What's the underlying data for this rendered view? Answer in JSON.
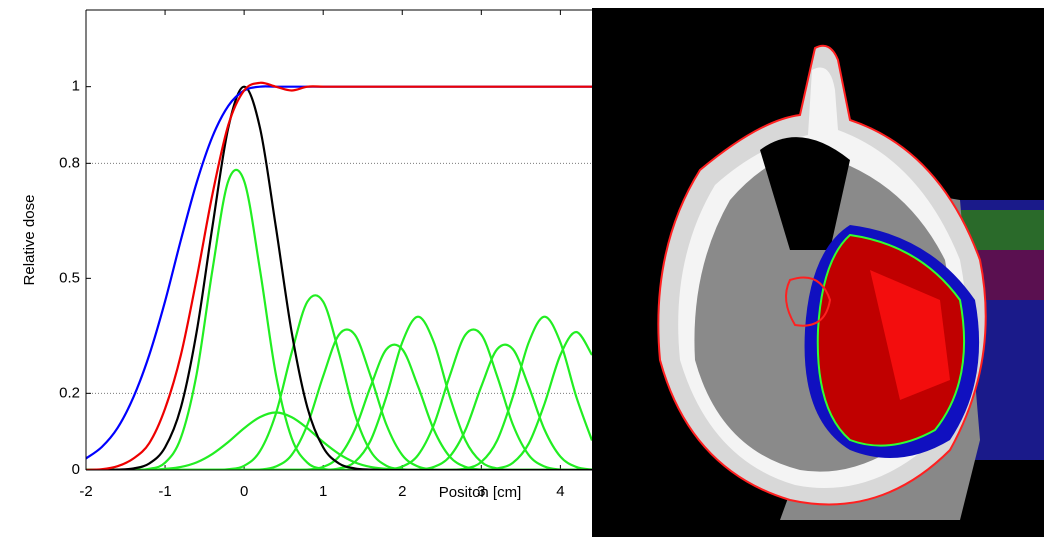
{
  "chart_data": {
    "type": "line",
    "x_label": "Positon [cm]",
    "y_label": "Relative dose",
    "x": [
      -2,
      -1.8,
      -1.6,
      -1.4,
      -1.2,
      -1,
      -0.8,
      -0.6,
      -0.4,
      -0.2,
      0,
      0.2,
      0.4,
      0.6,
      0.8,
      1,
      1.2,
      1.4,
      1.6,
      1.8,
      2,
      2.2,
      2.4,
      2.6,
      2.8,
      3,
      3.2,
      3.4,
      3.6,
      3.8,
      4,
      4.2,
      4.4
    ],
    "xlim": [
      -2,
      4.4
    ],
    "xticks": [
      -2,
      -1,
      0,
      1,
      2,
      3,
      4
    ],
    "ylim": [
      0,
      1.2
    ],
    "yticks": [
      0,
      0.2,
      0.5,
      0.8,
      1
    ],
    "grid_lines": [
      0.2,
      0.8
    ],
    "series": [
      {
        "color": "#22ee22",
        "values": [
          0,
          0,
          0,
          0,
          0.003,
          0.019,
          0.084,
          0.251,
          0.523,
          0.754,
          0.754,
          0.523,
          0.251,
          0.084,
          0.019,
          0.003,
          0,
          0,
          0,
          0,
          0,
          0,
          0,
          0,
          0,
          0,
          0,
          0,
          0,
          0,
          0,
          0,
          0
        ]
      },
      {
        "color": "#22ee22",
        "values": [
          0,
          0,
          0,
          0,
          0,
          0.003,
          0.008,
          0.02,
          0.042,
          0.073,
          0.109,
          0.138,
          0.15,
          0.138,
          0.109,
          0.073,
          0.042,
          0.02,
          0.008,
          0.003,
          0,
          0,
          0,
          0,
          0,
          0,
          0,
          0,
          0,
          0,
          0,
          0,
          0
        ]
      },
      {
        "color": "#22ee22",
        "values": [
          0,
          0,
          0,
          0,
          0,
          0,
          0,
          0,
          0,
          0.002,
          0.011,
          0.049,
          0.146,
          0.305,
          0.439,
          0.439,
          0.305,
          0.146,
          0.049,
          0.011,
          0.002,
          0,
          0,
          0,
          0,
          0,
          0,
          0,
          0,
          0,
          0,
          0,
          0
        ]
      },
      {
        "color": "#22ee22",
        "values": [
          0,
          0,
          0,
          0,
          0,
          0,
          0,
          0,
          0,
          0,
          0,
          0.001,
          0.009,
          0.039,
          0.118,
          0.245,
          0.353,
          0.353,
          0.245,
          0.118,
          0.039,
          0.009,
          0.001,
          0,
          0,
          0,
          0,
          0,
          0,
          0,
          0,
          0,
          0
        ]
      },
      {
        "color": "#22ee22",
        "values": [
          0,
          0,
          0,
          0,
          0,
          0,
          0,
          0,
          0,
          0,
          0,
          0,
          0,
          0,
          0.001,
          0.008,
          0.035,
          0.105,
          0.218,
          0.315,
          0.315,
          0.218,
          0.105,
          0.035,
          0.008,
          0.001,
          0,
          0,
          0,
          0,
          0,
          0,
          0
        ]
      },
      {
        "color": "#22ee22",
        "values": [
          0,
          0,
          0,
          0,
          0,
          0,
          0,
          0,
          0,
          0,
          0,
          0,
          0,
          0,
          0,
          0,
          0.004,
          0.021,
          0.077,
          0.192,
          0.333,
          0.4,
          0.333,
          0.192,
          0.077,
          0.021,
          0.004,
          0,
          0,
          0,
          0,
          0,
          0
        ]
      },
      {
        "color": "#22ee22",
        "values": [
          0,
          0,
          0,
          0,
          0,
          0,
          0,
          0,
          0,
          0,
          0,
          0,
          0,
          0,
          0,
          0,
          0,
          0,
          0,
          0.001,
          0.009,
          0.039,
          0.118,
          0.245,
          0.353,
          0.353,
          0.245,
          0.118,
          0.039,
          0.009,
          0.001,
          0,
          0
        ]
      },
      {
        "color": "#22ee22",
        "values": [
          0,
          0,
          0,
          0,
          0,
          0,
          0,
          0,
          0,
          0,
          0,
          0,
          0,
          0,
          0,
          0,
          0,
          0,
          0,
          0,
          0,
          0.001,
          0.008,
          0.035,
          0.105,
          0.218,
          0.315,
          0.315,
          0.218,
          0.105,
          0.035,
          0.008,
          0.001
        ]
      },
      {
        "color": "#22ee22",
        "values": [
          0,
          0,
          0,
          0,
          0,
          0,
          0,
          0,
          0,
          0,
          0,
          0,
          0,
          0,
          0,
          0,
          0,
          0,
          0,
          0,
          0,
          0,
          0,
          0,
          0.004,
          0.021,
          0.077,
          0.192,
          0.333,
          0.4,
          0.333,
          0.192,
          0.077
        ]
      },
      {
        "color": "#22ee22",
        "values": [
          0,
          0,
          0,
          0,
          0,
          0,
          0,
          0,
          0,
          0,
          0,
          0,
          0,
          0,
          0,
          0,
          0,
          0,
          0,
          0,
          0,
          0,
          0,
          0,
          0,
          0,
          0.004,
          0.019,
          0.069,
          0.173,
          0.3,
          0.36,
          0.3
        ]
      },
      {
        "color": "#000000",
        "values": [
          0,
          0,
          0.001,
          0.004,
          0.017,
          0.059,
          0.163,
          0.361,
          0.636,
          0.893,
          1,
          0.893,
          0.636,
          0.361,
          0.163,
          0.059,
          0.017,
          0.004,
          0.001,
          0,
          0,
          0,
          0,
          0,
          0,
          0,
          0,
          0,
          0,
          0,
          0,
          0,
          0
        ]
      },
      {
        "color": "#0000ff",
        "values": [
          0.03,
          0.06,
          0.11,
          0.19,
          0.3,
          0.44,
          0.6,
          0.75,
          0.87,
          0.95,
          0.99,
          1,
          1,
          1,
          1,
          1,
          1,
          1,
          1,
          1,
          1,
          1,
          1,
          1,
          1,
          1,
          1,
          1,
          1,
          1,
          1,
          1,
          1
        ]
      },
      {
        "color": "#ee0000",
        "values": [
          0,
          0.002,
          0.01,
          0.03,
          0.07,
          0.16,
          0.3,
          0.5,
          0.72,
          0.9,
          0.99,
          1.01,
          1,
          0.99,
          1,
          1,
          1,
          1,
          1,
          1,
          1,
          1,
          1,
          1,
          1,
          1,
          1,
          1,
          1,
          1,
          1,
          1,
          1
        ]
      }
    ]
  }
}
